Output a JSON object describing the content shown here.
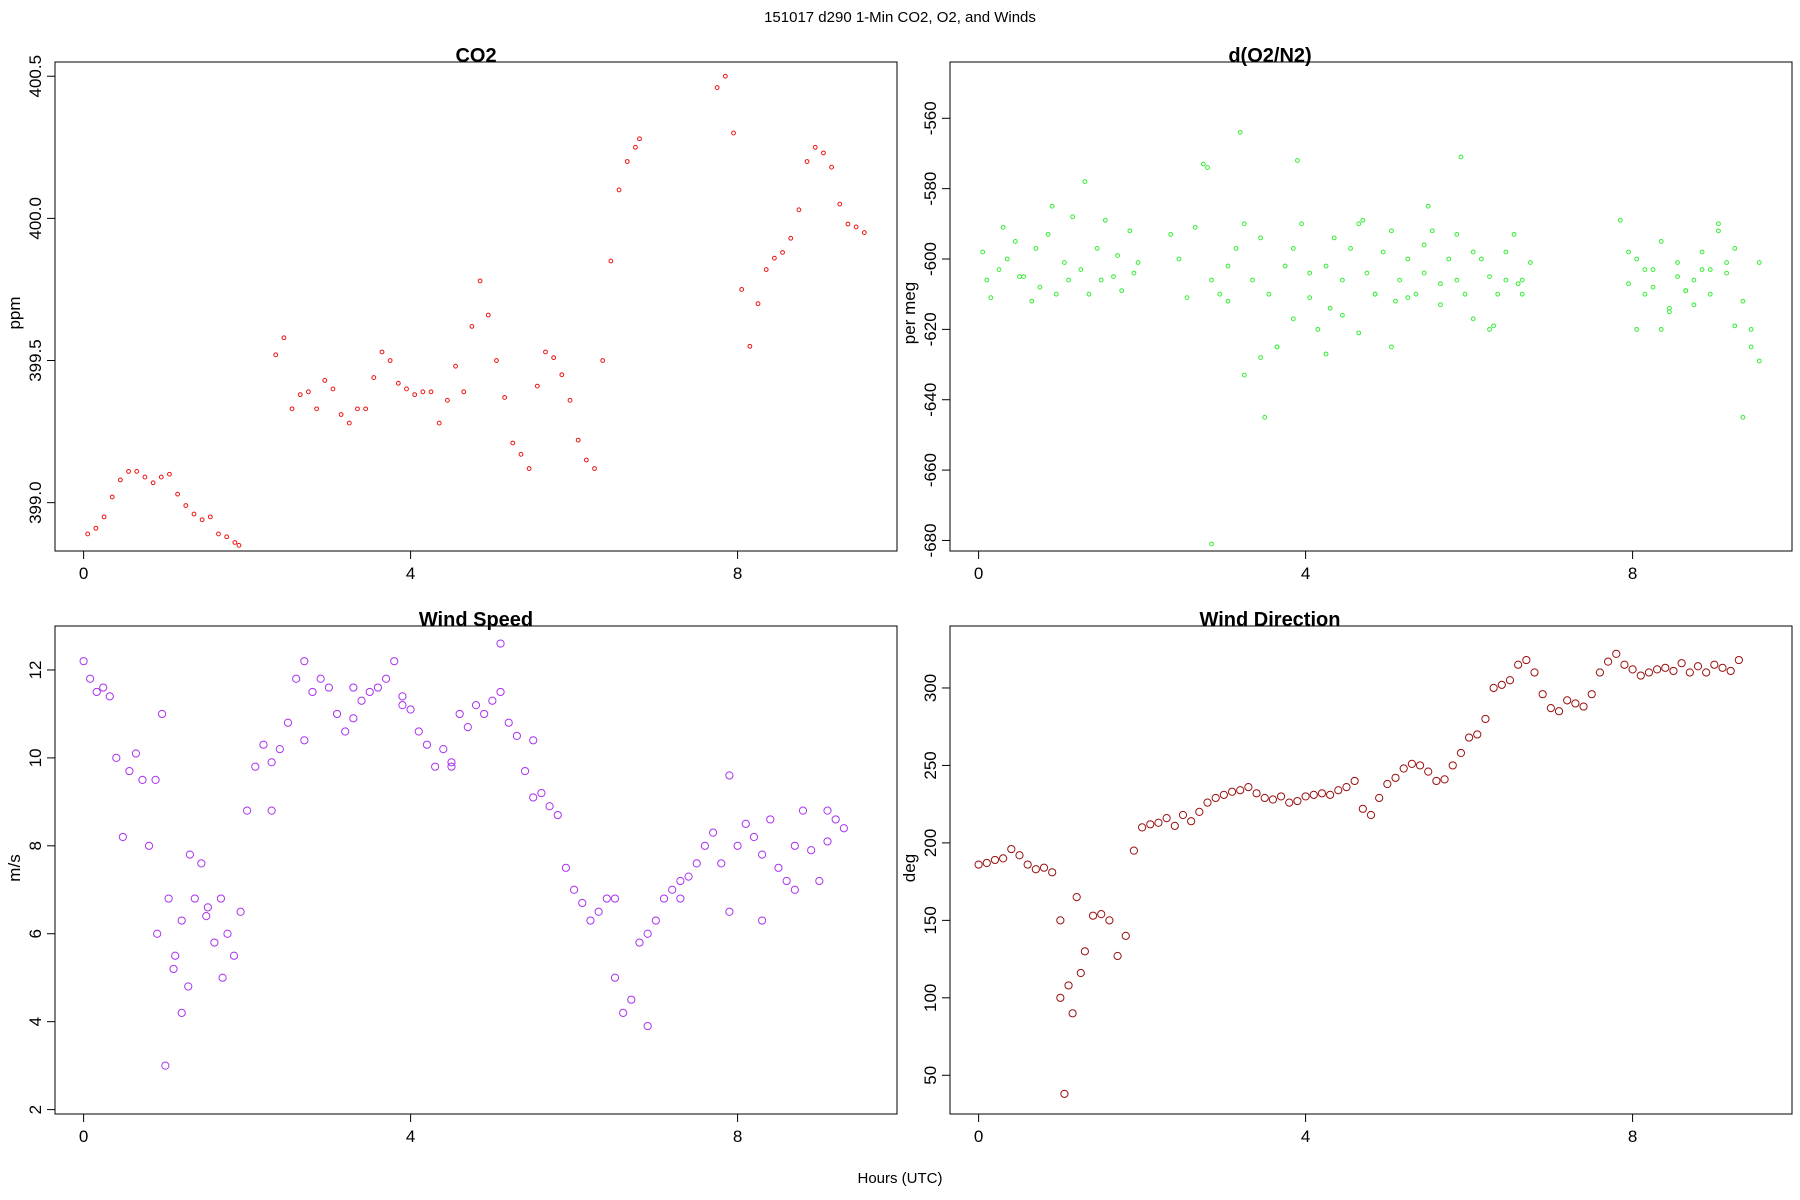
{
  "figure": {
    "title": "151017   d290   1-Min CO2, O2, and Winds",
    "xlabel": "Hours (UTC)"
  },
  "chart_data": [
    {
      "type": "scatter",
      "title": "CO2",
      "xlabel": "",
      "ylabel": "ppm",
      "xlim": [
        -0.35,
        9.95
      ],
      "ylim": [
        398.83,
        400.55
      ],
      "xticks": [
        "0",
        "4",
        "8"
      ],
      "yticks": [
        "399.0",
        "399.5",
        "400.0",
        "400.5"
      ],
      "color": "#ee1111",
      "series": [
        {
          "x": [
            0.05,
            0.15,
            0.25,
            0.35,
            0.45,
            0.55,
            0.65,
            0.75,
            0.85,
            0.95,
            1.05,
            1.15,
            1.25,
            1.35,
            1.45,
            1.55,
            1.65,
            1.75,
            1.85,
            1.9,
            2.35,
            2.45,
            2.55,
            2.65,
            2.75,
            2.85,
            2.95,
            3.05,
            3.15,
            3.25,
            3.35,
            3.45,
            3.55,
            3.65,
            3.75,
            3.85,
            3.95,
            4.05,
            4.15,
            4.25,
            4.35,
            4.45,
            4.55,
            4.65,
            4.75,
            4.85,
            4.95,
            5.05,
            5.15,
            5.25,
            5.35,
            5.45,
            5.55,
            5.65,
            5.75,
            5.85,
            5.95,
            6.05,
            6.15,
            6.25,
            6.35,
            6.45,
            6.55,
            6.65,
            6.75,
            6.8,
            7.75,
            7.85,
            7.95,
            8.05,
            8.15,
            8.25,
            8.35,
            8.45,
            8.55,
            8.65,
            8.75,
            8.85,
            8.95,
            9.05,
            9.15,
            9.25,
            9.35,
            9.45,
            9.55
          ],
          "y": [
            398.89,
            398.91,
            398.95,
            399.02,
            399.08,
            399.11,
            399.11,
            399.09,
            399.07,
            399.09,
            399.1,
            399.03,
            398.99,
            398.96,
            398.94,
            398.95,
            398.89,
            398.88,
            398.86,
            398.85,
            399.52,
            399.58,
            399.33,
            399.38,
            399.39,
            399.33,
            399.43,
            399.4,
            399.31,
            399.28,
            399.33,
            399.33,
            399.44,
            399.53,
            399.5,
            399.42,
            399.4,
            399.38,
            399.39,
            399.39,
            399.28,
            399.36,
            399.48,
            399.39,
            399.62,
            399.78,
            399.66,
            399.5,
            399.37,
            399.21,
            399.17,
            399.12,
            399.41,
            399.53,
            399.51,
            399.45,
            399.36,
            399.22,
            399.15,
            399.12,
            399.5,
            399.85,
            400.1,
            400.2,
            400.25,
            400.28,
            400.46,
            400.5,
            400.3,
            399.75,
            399.55,
            399.7,
            399.82,
            399.86,
            399.88,
            399.93,
            400.03,
            400.2,
            400.25,
            400.23,
            400.18,
            400.05,
            399.98,
            399.97,
            399.95
          ]
        }
      ]
    },
    {
      "type": "scatter",
      "title": "d(O2/N2)",
      "xlabel": "",
      "ylabel": "per meg",
      "xlim": [
        -0.35,
        9.95
      ],
      "ylim": [
        -683,
        -544
      ],
      "xticks": [
        "0",
        "4",
        "8"
      ],
      "yticks": [
        "-680",
        "-660",
        "-640",
        "-620",
        "-600",
        "-580",
        "-560"
      ],
      "color": "#33ee33",
      "series": [
        {
          "x": [
            0.05,
            0.15,
            0.25,
            0.35,
            0.45,
            0.55,
            0.65,
            0.75,
            0.85,
            0.95,
            1.05,
            1.15,
            1.25,
            1.35,
            1.45,
            1.55,
            1.65,
            1.75,
            1.85,
            1.95,
            2.35,
            2.45,
            2.55,
            2.65,
            2.75,
            2.85,
            2.95,
            3.05,
            3.15,
            3.25,
            3.35,
            3.45,
            3.55,
            3.65,
            3.75,
            3.85,
            3.95,
            4.05,
            4.15,
            4.25,
            4.35,
            4.45,
            4.55,
            4.65,
            4.75,
            4.85,
            4.95,
            5.05,
            5.15,
            5.25,
            5.35,
            5.45,
            5.55,
            5.65,
            5.75,
            5.85,
            5.95,
            6.05,
            6.15,
            6.25,
            6.35,
            6.45,
            6.55,
            6.65,
            6.75,
            7.85,
            7.95,
            8.05,
            8.15,
            8.25,
            8.35,
            8.45,
            8.55,
            8.65,
            8.75,
            8.85,
            8.95,
            9.05,
            9.15,
            9.25,
            9.35,
            9.45,
            9.55,
            9.55,
            9.45,
            9.35,
            9.25,
            9.15,
            9.05,
            8.95,
            8.85,
            8.75,
            8.65,
            8.55,
            8.45,
            8.35,
            8.25,
            8.15,
            8.05,
            7.95,
            2.85,
            3.05,
            3.25,
            3.45,
            3.65,
            3.85,
            4.05,
            4.25,
            4.45,
            4.65,
            4.85,
            5.05,
            5.25,
            5.45,
            5.65,
            5.85,
            6.05,
            6.25,
            6.45,
            6.65,
            0.1,
            0.3,
            0.5,
            0.7,
            0.9,
            1.1,
            1.3,
            1.5,
            1.7,
            1.9,
            2.8,
            3.2,
            3.5,
            3.9,
            4.3,
            4.7,
            5.1,
            5.5,
            5.9,
            6.3,
            6.6
          ],
          "y": [
            -598,
            -611,
            -603,
            -600,
            -595,
            -605,
            -612,
            -608,
            -593,
            -610,
            -601,
            -588,
            -603,
            -610,
            -597,
            -589,
            -605,
            -609,
            -592,
            -601,
            -593,
            -600,
            -611,
            -591,
            -573,
            -606,
            -610,
            -602,
            -597,
            -633,
            -606,
            -594,
            -610,
            -625,
            -602,
            -597,
            -590,
            -604,
            -620,
            -602,
            -594,
            -606,
            -597,
            -590,
            -604,
            -610,
            -598,
            -592,
            -606,
            -600,
            -610,
            -596,
            -592,
            -607,
            -600,
            -593,
            -610,
            -598,
            -600,
            -605,
            -610,
            -598,
            -593,
            -606,
            -601,
            -589,
            -607,
            -600,
            -610,
            -603,
            -595,
            -615,
            -601,
            -609,
            -606,
            -603,
            -610,
            -592,
            -601,
            -597,
            -612,
            -620,
            -601,
            -629,
            -625,
            -645,
            -619,
            -604,
            -590,
            -603,
            -598,
            -613,
            -609,
            -605,
            -614,
            -620,
            -608,
            -603,
            -620,
            -598,
            -681,
            -612,
            -590,
            -628,
            -625,
            -617,
            -611,
            -627,
            -616,
            -621,
            -610,
            -625,
            -611,
            -604,
            -613,
            -606,
            -617,
            -620,
            -606,
            -610,
            -606,
            -591,
            -605,
            -597,
            -585,
            -606,
            -578,
            -606,
            -599,
            -604,
            -574,
            -564,
            -645,
            -572,
            -614,
            -589,
            -612,
            -585,
            -571,
            -619,
            -607
          ]
        }
      ]
    },
    {
      "type": "scatter",
      "title": "Wind Speed",
      "xlabel": "",
      "ylabel": "m/s",
      "xlim": [
        -0.35,
        9.95
      ],
      "ylim": [
        1.9,
        13.0
      ],
      "xticks": [
        "0",
        "4",
        "8"
      ],
      "yticks": [
        "2",
        "4",
        "6",
        "8",
        "10",
        "12"
      ],
      "color": "#aa33ee",
      "series": [
        {
          "x": [
            0.0,
            0.08,
            0.16,
            0.24,
            0.32,
            0.4,
            0.48,
            0.56,
            0.64,
            0.72,
            0.8,
            0.88,
            0.96,
            1.04,
            1.12,
            1.2,
            1.28,
            1.36,
            1.44,
            1.52,
            1.6,
            1.68,
            1.76,
            1.84,
            1.92,
            2.0,
            2.1,
            2.2,
            2.3,
            2.4,
            2.5,
            2.6,
            2.7,
            2.8,
            2.9,
            3.0,
            3.1,
            3.2,
            3.3,
            3.4,
            3.5,
            3.6,
            3.7,
            3.8,
            3.9,
            4.0,
            4.1,
            4.2,
            4.3,
            4.4,
            4.5,
            4.6,
            4.7,
            4.8,
            4.9,
            5.0,
            5.1,
            5.2,
            5.3,
            5.4,
            5.5,
            5.6,
            5.7,
            5.8,
            5.9,
            6.0,
            6.1,
            6.2,
            6.3,
            6.4,
            6.5,
            6.6,
            6.7,
            6.8,
            6.9,
            7.0,
            7.1,
            7.2,
            7.3,
            7.4,
            7.5,
            7.6,
            7.7,
            7.8,
            7.9,
            8.0,
            8.1,
            8.2,
            8.3,
            8.4,
            8.5,
            8.6,
            8.7,
            8.8,
            8.9,
            9.0,
            9.1,
            9.2,
            9.3,
            0.9,
            1.0,
            1.1,
            1.2,
            1.3,
            1.5,
            1.7,
            2.3,
            2.7,
            3.3,
            3.9,
            4.5,
            5.1,
            5.5,
            6.5,
            6.9,
            7.3,
            7.9,
            8.3,
            8.7,
            9.1
          ],
          "y": [
            12.2,
            11.8,
            11.5,
            11.6,
            11.4,
            10.0,
            8.2,
            9.7,
            10.1,
            9.5,
            8.0,
            9.5,
            11.0,
            6.8,
            5.5,
            4.2,
            4.8,
            6.8,
            7.6,
            6.6,
            5.8,
            6.8,
            6.0,
            5.5,
            6.5,
            8.8,
            9.8,
            10.3,
            9.9,
            10.2,
            10.8,
            11.8,
            12.2,
            11.5,
            11.8,
            11.6,
            11.0,
            10.6,
            10.9,
            11.3,
            11.5,
            11.6,
            11.8,
            12.2,
            11.4,
            11.1,
            10.6,
            10.3,
            9.8,
            10.2,
            9.9,
            11.0,
            10.7,
            11.2,
            11.0,
            11.3,
            11.5,
            10.8,
            10.5,
            9.7,
            9.1,
            9.2,
            8.9,
            8.7,
            7.5,
            7.0,
            6.7,
            6.3,
            6.5,
            6.8,
            5.0,
            4.2,
            4.5,
            5.8,
            6.0,
            6.3,
            6.8,
            7.0,
            7.2,
            7.3,
            7.6,
            8.0,
            8.3,
            7.6,
            6.5,
            8.0,
            8.5,
            8.2,
            7.8,
            8.6,
            7.5,
            7.2,
            8.0,
            8.8,
            7.9,
            7.2,
            8.1,
            8.6,
            8.4,
            6.0,
            3.0,
            5.2,
            6.3,
            7.8,
            6.4,
            5.0,
            8.8,
            10.4,
            11.6,
            11.2,
            9.8,
            12.6,
            10.4,
            6.8,
            3.9,
            6.8,
            9.6,
            6.3,
            7.0,
            8.8
          ]
        }
      ]
    },
    {
      "type": "scatter",
      "title": "Wind Direction",
      "xlabel": "",
      "ylabel": "deg",
      "xlim": [
        -0.35,
        9.95
      ],
      "ylim": [
        25,
        340
      ],
      "xticks": [
        "0",
        "4",
        "8"
      ],
      "yticks": [
        "50",
        "100",
        "150",
        "200",
        "250",
        "300"
      ],
      "color": "#991111",
      "series": [
        {
          "x": [
            0.0,
            0.1,
            0.2,
            0.3,
            0.4,
            0.5,
            0.6,
            0.7,
            0.8,
            0.9,
            1.0,
            1.1,
            1.2,
            1.3,
            1.4,
            1.5,
            1.6,
            1.7,
            1.8,
            1.9,
            2.0,
            2.1,
            2.2,
            2.3,
            2.4,
            2.5,
            2.6,
            2.7,
            2.8,
            2.9,
            3.0,
            3.1,
            3.2,
            3.3,
            3.4,
            3.5,
            3.6,
            3.7,
            3.8,
            3.9,
            4.0,
            4.1,
            4.2,
            4.3,
            4.4,
            4.5,
            4.6,
            4.7,
            4.8,
            4.9,
            5.0,
            5.1,
            5.2,
            5.3,
            5.4,
            5.5,
            5.6,
            5.7,
            5.8,
            5.9,
            6.0,
            6.1,
            6.2,
            6.3,
            6.4,
            6.5,
            6.6,
            6.7,
            6.8,
            6.9,
            7.0,
            7.1,
            7.2,
            7.3,
            7.4,
            7.5,
            7.6,
            7.7,
            7.8,
            7.9,
            8.0,
            8.1,
            8.2,
            8.3,
            8.4,
            8.5,
            8.6,
            8.7,
            8.8,
            8.9,
            9.0,
            9.1,
            9.2,
            9.3,
            1.0,
            1.05,
            1.15,
            1.25
          ],
          "y": [
            186,
            187,
            189,
            190,
            196,
            192,
            186,
            183,
            184,
            181,
            150,
            108,
            165,
            130,
            153,
            154,
            150,
            127,
            140,
            195,
            210,
            212,
            213,
            216,
            211,
            218,
            214,
            220,
            226,
            229,
            231,
            233,
            234,
            236,
            232,
            229,
            228,
            230,
            226,
            227,
            230,
            231,
            232,
            231,
            234,
            236,
            240,
            222,
            218,
            229,
            238,
            242,
            248,
            251,
            250,
            246,
            240,
            241,
            250,
            258,
            268,
            270,
            280,
            300,
            302,
            305,
            315,
            318,
            310,
            296,
            287,
            285,
            292,
            290,
            288,
            296,
            310,
            317,
            322,
            315,
            312,
            308,
            310,
            312,
            313,
            311,
            316,
            310,
            314,
            310,
            315,
            313,
            311,
            318,
            100,
            38,
            90,
            116
          ]
        }
      ]
    }
  ]
}
